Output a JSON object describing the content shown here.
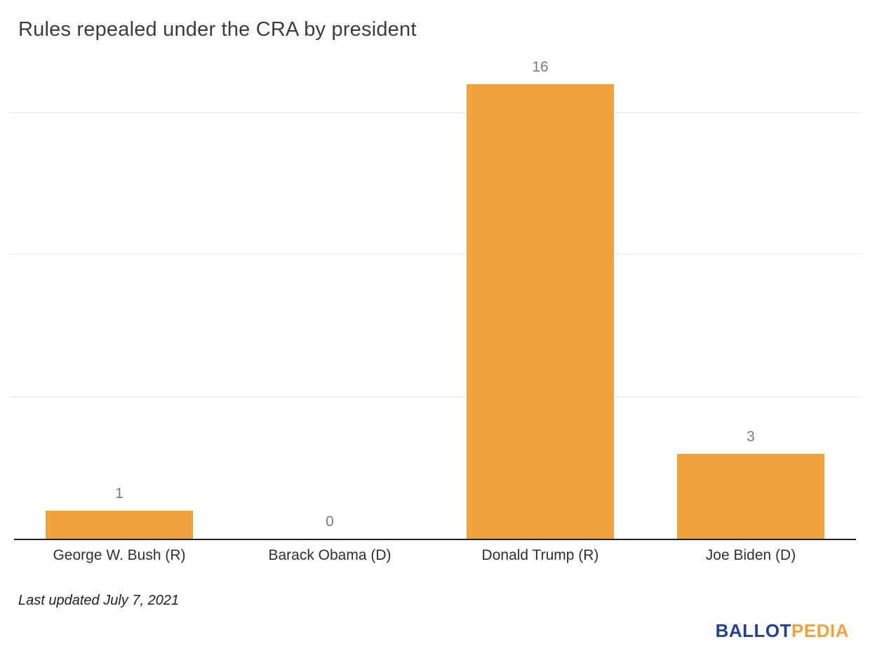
{
  "chart_data": {
    "type": "bar",
    "title": "Rules repealed under the CRA by president",
    "categories": [
      "George W. Bush (R)",
      "Barack Obama (D)",
      "Donald Trump (R)",
      "Joe Biden (D)"
    ],
    "values": [
      1,
      0,
      16,
      3
    ],
    "xlabel": "",
    "ylabel": "",
    "ylim": [
      0,
      16.3
    ],
    "gridlines": [
      5,
      10,
      15
    ],
    "grid": "horizontal, light gray, no y tick labels",
    "legend": "none",
    "bar_color": "#f0a33c",
    "value_label_color": "#7a7a7a"
  },
  "footer": {
    "last_updated": "Last updated July 7, 2021"
  },
  "branding": {
    "logo_part1": "BALLOT",
    "logo_part2": "PEDIA",
    "logo_color1": "#23418f",
    "logo_color2": "#f0a33c"
  }
}
